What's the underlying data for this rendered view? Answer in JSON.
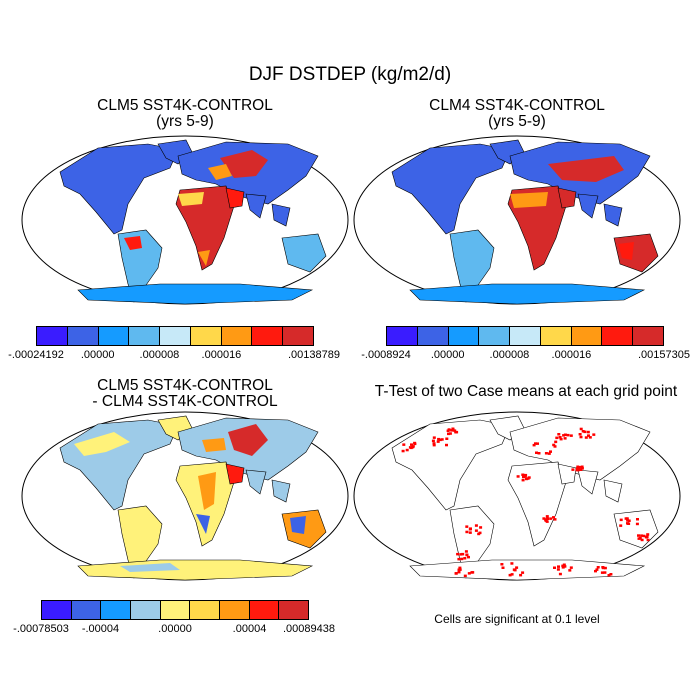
{
  "title": "DJF DSTDEP (kg/m2/d)",
  "panels": [
    {
      "title_line1": "CLM5 SST4K-CONTROL",
      "title_line2": "(yrs 5-9)"
    },
    {
      "title_line1": "CLM4 SST4K-CONTROL",
      "title_line2": "(yrs 5-9)"
    },
    {
      "title_line1": "CLM5 SST4K-CONTROL",
      "title_line2": "- CLM4 SST4K-CONTROL"
    },
    {
      "title_line1": "T-Test of two Case means at each grid point",
      "title_line2": ""
    }
  ],
  "colorbars": [
    {
      "colors": [
        "#3a1cff",
        "#3d63e6",
        "#159bff",
        "#5fb9ef",
        "#c7e9f8",
        "#ffd84a",
        "#ff9a14",
        "#ff1a0e",
        "#d62a2a"
      ],
      "labels": [
        "-.00024192",
        ".00000",
        ".000008",
        ".000016",
        ".00138789"
      ]
    },
    {
      "colors": [
        "#3a1cff",
        "#3d63e6",
        "#159bff",
        "#5fb9ef",
        "#c7e9f8",
        "#ffd84a",
        "#ff9a14",
        "#ff1a0e",
        "#d62a2a"
      ],
      "labels": [
        "-.0008924",
        ".00000",
        ".000008",
        ".000016",
        ".00157305"
      ]
    },
    {
      "colors": [
        "#3a1cff",
        "#3d63e6",
        "#159bff",
        "#9dcbe8",
        "#fff27a",
        "#ffd84a",
        "#ff9a14",
        "#ff1a0e",
        "#d62a2a"
      ],
      "labels": [
        "-.00078503",
        "-.00004",
        ".00000",
        ".00004",
        ".00089438"
      ]
    }
  ],
  "significance_color": "#ff0000",
  "note": "Cells are significant at 0.1 level"
}
